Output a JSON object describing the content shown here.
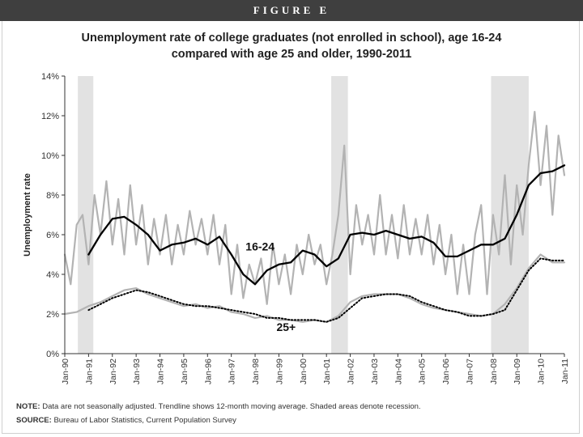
{
  "figure": {
    "label": "FIGURE E"
  },
  "chart_data": {
    "type": "line",
    "title": "Unemployment rate of college graduates (not enrolled in school), age 16-24",
    "subtitle": "compared with age 25 and older, 1990-2011",
    "xlabel": "",
    "ylabel": "Unemployment rate",
    "ylim": [
      0,
      14
    ],
    "yticks": [
      "0%",
      "2%",
      "4%",
      "6%",
      "8%",
      "10%",
      "12%",
      "14%"
    ],
    "xticks": [
      "Jan-90",
      "Jan-91",
      "Jan-92",
      "Jan-93",
      "Jan-94",
      "Jan-95",
      "Jan-96",
      "Jan-97",
      "Jan-98",
      "Jan-99",
      "Jan-00",
      "Jan-01",
      "Jan-02",
      "Jan-03",
      "Jan-04",
      "Jan-05",
      "Jan-06",
      "Jan-07",
      "Jan-08",
      "Jan-09",
      "Jan-10",
      "Jan-11"
    ],
    "recessions": [
      [
        1990.55,
        1991.2
      ],
      [
        2001.2,
        2001.9
      ],
      [
        2007.92,
        2009.5
      ]
    ],
    "series": [
      {
        "name": "16-24 monthly",
        "style": "raw",
        "color": "#b3b3b3",
        "x": [
          1990.0,
          1990.25,
          1990.5,
          1990.75,
          1991.0,
          1991.25,
          1991.5,
          1991.75,
          1992.0,
          1992.25,
          1992.5,
          1992.75,
          1993.0,
          1993.25,
          1993.5,
          1993.75,
          1994.0,
          1994.25,
          1994.5,
          1994.75,
          1995.0,
          1995.25,
          1995.5,
          1995.75,
          1996.0,
          1996.25,
          1996.5,
          1996.75,
          1997.0,
          1997.25,
          1997.5,
          1997.75,
          1998.0,
          1998.25,
          1998.5,
          1998.75,
          1999.0,
          1999.25,
          1999.5,
          1999.75,
          2000.0,
          2000.25,
          2000.5,
          2000.75,
          2001.0,
          2001.25,
          2001.5,
          2001.75,
          2002.0,
          2002.25,
          2002.5,
          2002.75,
          2003.0,
          2003.25,
          2003.5,
          2003.75,
          2004.0,
          2004.25,
          2004.5,
          2004.75,
          2005.0,
          2005.25,
          2005.5,
          2005.75,
          2006.0,
          2006.25,
          2006.5,
          2006.75,
          2007.0,
          2007.25,
          2007.5,
          2007.75,
          2008.0,
          2008.25,
          2008.5,
          2008.75,
          2009.0,
          2009.25,
          2009.5,
          2009.75,
          2010.0,
          2010.25,
          2010.5,
          2010.75,
          2011.0
        ],
        "y": [
          5.0,
          3.5,
          6.5,
          7.0,
          4.5,
          8.0,
          6.0,
          8.7,
          5.5,
          7.8,
          5.0,
          8.5,
          5.5,
          7.5,
          4.5,
          6.8,
          5.0,
          7.0,
          4.5,
          6.5,
          5.0,
          7.2,
          5.5,
          6.8,
          5.0,
          7.0,
          4.5,
          6.5,
          3.0,
          5.5,
          2.8,
          4.5,
          3.5,
          4.8,
          2.5,
          5.5,
          3.5,
          5.0,
          3.0,
          5.5,
          4.0,
          6.0,
          4.5,
          5.5,
          3.5,
          5.0,
          7.0,
          10.5,
          4.0,
          7.5,
          5.5,
          7.0,
          5.0,
          8.0,
          5.0,
          7.0,
          4.8,
          7.5,
          5.0,
          6.8,
          5.0,
          7.0,
          4.5,
          6.5,
          4.0,
          6.0,
          3.0,
          5.5,
          3.0,
          6.0,
          7.5,
          3.0,
          7.0,
          5.0,
          9.0,
          4.5,
          8.5,
          6.0,
          9.5,
          12.2,
          8.5,
          11.5,
          7.0,
          11.0,
          9.0
        ]
      },
      {
        "name": "16-24",
        "style": "solid",
        "color": "#000000",
        "x": [
          1991.0,
          1991.5,
          1992.0,
          1992.5,
          1993.0,
          1993.5,
          1994.0,
          1994.5,
          1995.0,
          1995.5,
          1996.0,
          1996.5,
          1997.0,
          1997.5,
          1998.0,
          1998.5,
          1999.0,
          1999.5,
          2000.0,
          2000.5,
          2001.0,
          2001.5,
          2002.0,
          2002.5,
          2003.0,
          2003.5,
          2004.0,
          2004.5,
          2005.0,
          2005.5,
          2006.0,
          2006.5,
          2007.0,
          2007.5,
          2008.0,
          2008.5,
          2009.0,
          2009.5,
          2010.0,
          2010.5,
          2011.0
        ],
        "y": [
          5.0,
          6.0,
          6.8,
          6.9,
          6.5,
          6.0,
          5.2,
          5.5,
          5.6,
          5.8,
          5.5,
          5.9,
          5.0,
          4.0,
          3.5,
          4.2,
          4.5,
          4.6,
          5.2,
          5.0,
          4.4,
          4.8,
          6.0,
          6.1,
          6.0,
          6.2,
          6.0,
          5.8,
          5.9,
          5.6,
          4.9,
          4.9,
          5.2,
          5.5,
          5.5,
          5.8,
          7.0,
          8.5,
          9.1,
          9.2,
          9.5
        ]
      },
      {
        "name": "25+ monthly",
        "style": "raw",
        "color": "#b3b3b3",
        "x": [
          1990.0,
          1990.5,
          1991.0,
          1991.5,
          1992.0,
          1992.5,
          1993.0,
          1993.5,
          1994.0,
          1994.5,
          1995.0,
          1995.5,
          1996.0,
          1996.5,
          1997.0,
          1997.5,
          1998.0,
          1998.5,
          1999.0,
          1999.5,
          2000.0,
          2000.5,
          2001.0,
          2001.5,
          2002.0,
          2002.5,
          2003.0,
          2003.5,
          2004.0,
          2004.5,
          2005.0,
          2005.5,
          2006.0,
          2006.5,
          2007.0,
          2007.5,
          2008.0,
          2008.5,
          2009.0,
          2009.5,
          2010.0,
          2010.5,
          2011.0
        ],
        "y": [
          2.0,
          2.1,
          2.4,
          2.6,
          2.9,
          3.2,
          3.3,
          3.0,
          2.8,
          2.6,
          2.4,
          2.5,
          2.3,
          2.4,
          2.1,
          2.0,
          1.8,
          1.9,
          1.7,
          1.7,
          1.6,
          1.7,
          1.6,
          1.9,
          2.6,
          2.9,
          3.0,
          3.0,
          3.0,
          2.8,
          2.5,
          2.3,
          2.2,
          2.1,
          2.0,
          1.9,
          2.0,
          2.5,
          3.3,
          4.3,
          5.0,
          4.6,
          4.6
        ]
      },
      {
        "name": "25+",
        "style": "dotted",
        "color": "#000000",
        "x": [
          1991.0,
          1991.5,
          1992.0,
          1992.5,
          1993.0,
          1993.5,
          1994.0,
          1994.5,
          1995.0,
          1995.5,
          1996.0,
          1996.5,
          1997.0,
          1997.5,
          1998.0,
          1998.5,
          1999.0,
          1999.5,
          2000.0,
          2000.5,
          2001.0,
          2001.5,
          2002.0,
          2002.5,
          2003.0,
          2003.5,
          2004.0,
          2004.5,
          2005.0,
          2005.5,
          2006.0,
          2006.5,
          2007.0,
          2007.5,
          2008.0,
          2008.5,
          2009.0,
          2009.5,
          2010.0,
          2010.5,
          2011.0
        ],
        "y": [
          2.2,
          2.5,
          2.8,
          3.0,
          3.2,
          3.1,
          2.9,
          2.7,
          2.5,
          2.4,
          2.4,
          2.3,
          2.2,
          2.1,
          2.0,
          1.8,
          1.8,
          1.7,
          1.7,
          1.7,
          1.6,
          1.8,
          2.3,
          2.8,
          2.9,
          3.0,
          3.0,
          2.9,
          2.6,
          2.4,
          2.2,
          2.1,
          1.9,
          1.9,
          2.0,
          2.2,
          3.2,
          4.2,
          4.8,
          4.7,
          4.7
        ]
      }
    ],
    "annotations": [
      {
        "text": "16-24",
        "x": 1997.6,
        "y": 5.2
      },
      {
        "text": "25+",
        "x": 1998.9,
        "y": 1.15
      }
    ],
    "legend": "none",
    "grid": false
  },
  "footer": {
    "note_label": "NOTE:",
    "note_text": "Data are not seasonally adjusted. Trendline shows 12-month moving average. Shaded areas denote recession.",
    "source_label": "SOURCE:",
    "source_text": "Bureau of Labor Statistics, Current Population Survey"
  }
}
